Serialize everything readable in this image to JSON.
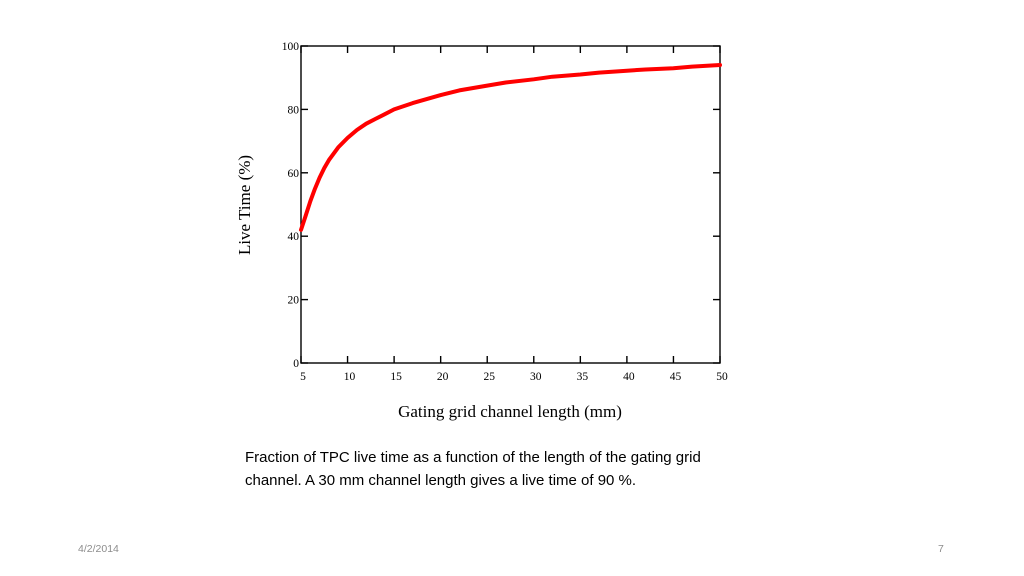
{
  "chart_data": {
    "type": "line",
    "xlabel": "Gating grid channel length (mm)",
    "ylabel": "Live Time (%)",
    "xlim": [
      5,
      50
    ],
    "ylim": [
      0,
      100
    ],
    "x_ticks": [
      5,
      10,
      15,
      20,
      25,
      30,
      35,
      40,
      45,
      50
    ],
    "y_ticks": [
      0,
      20,
      40,
      60,
      80,
      100
    ],
    "grid": false,
    "series": [
      {
        "color": "#ff0000",
        "x": [
          5,
          5.5,
          6,
          6.5,
          7,
          7.5,
          8,
          9,
          10,
          11,
          12,
          13,
          14,
          15,
          17,
          20,
          22,
          25,
          27,
          30,
          32,
          35,
          37,
          40,
          42,
          45,
          47,
          50
        ],
        "y": [
          42,
          46.5,
          51,
          55,
          58.5,
          61.5,
          64,
          68,
          71,
          73.5,
          75.5,
          77,
          78.5,
          80,
          82,
          84.5,
          86,
          87.5,
          88.5,
          89.5,
          90.3,
          91,
          91.6,
          92.2,
          92.6,
          93,
          93.5,
          94
        ]
      }
    ]
  },
  "caption": {
    "line1": "Fraction of TPC live time as a function of the length of the gating grid",
    "line2": "channel.  A 30 mm channel length gives a live time of 90 %."
  },
  "footer": {
    "date": "4/2/2014",
    "page": "7"
  }
}
